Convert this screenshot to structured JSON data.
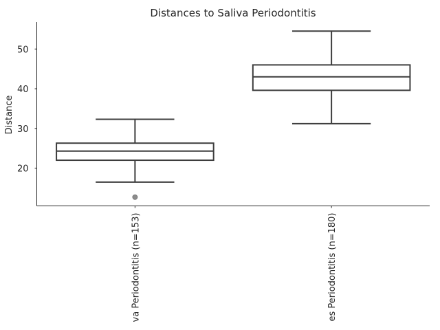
{
  "chart_data": {
    "type": "box",
    "title": "Distances to Saliva Periodontitis",
    "xlabel": "",
    "ylabel": "Distance",
    "ylim": [
      10.5,
      56.8
    ],
    "yticks": [
      20,
      30,
      40,
      50
    ],
    "grid": false,
    "categories": [
      "va Periodontitis (n=153)",
      "es Periodontitis (n=180)"
    ],
    "boxes": [
      {
        "whisker_low": 16.5,
        "q1": 22.0,
        "median": 24.3,
        "q3": 26.3,
        "whisker_high": 32.3,
        "outliers": [
          12.7
        ]
      },
      {
        "whisker_low": 31.2,
        "q1": 39.6,
        "median": 43.0,
        "q3": 46.0,
        "whisker_high": 54.5,
        "outliers": []
      }
    ],
    "colors": {
      "box_edge": "#3d3d3d",
      "box_fill": "#ffffff",
      "outlier": "#8c8c8c",
      "text": "#262626"
    }
  }
}
